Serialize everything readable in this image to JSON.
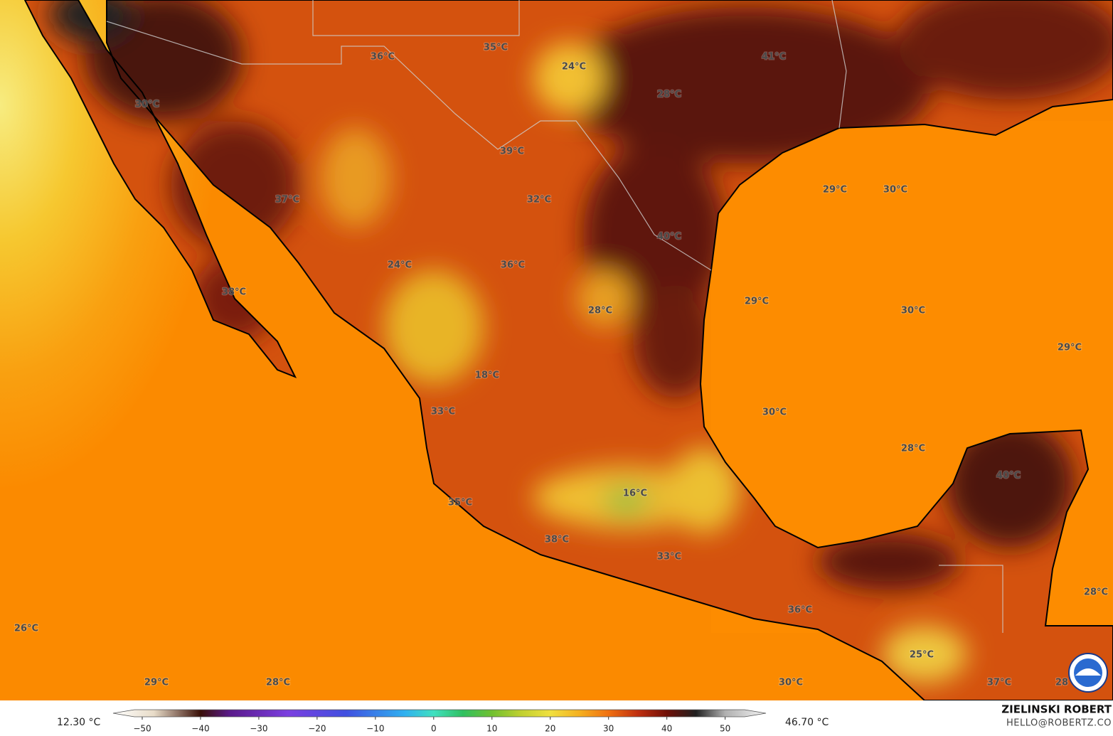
{
  "map": {
    "labels": [
      "36°C",
      "35°C",
      "24°C",
      "41°C",
      "30°C",
      "28°C",
      "39°C",
      "29°C",
      "30°C",
      "37°C",
      "32°C",
      "40°C",
      "24°C",
      "36°C",
      "38°C",
      "28°C",
      "29°C",
      "30°C",
      "29°C",
      "18°C",
      "30°C",
      "33°C",
      "28°C",
      "40°C",
      "16°C",
      "35°C",
      "38°C",
      "33°C",
      "36°C",
      "28°C",
      "26°C",
      "25°C",
      "29°C",
      "28°C",
      "30°C",
      "37°C",
      "28"
    ],
    "colorbar": {
      "min_label": "12.30 °C",
      "max_label": "46.70 °C",
      "lim": [
        -55,
        57
      ],
      "ticks": [
        {
          "value": -50,
          "label": "−50"
        },
        {
          "value": -40,
          "label": "−40"
        },
        {
          "value": -30,
          "label": "−30"
        },
        {
          "value": -20,
          "label": "−20"
        },
        {
          "value": -10,
          "label": "−10"
        },
        0,
        10,
        20,
        30,
        40,
        50
      ]
    },
    "credit": {
      "name": "ZIELINSKI ROBERT",
      "email": "HELLO@ROBERTZ.CO"
    }
  }
}
